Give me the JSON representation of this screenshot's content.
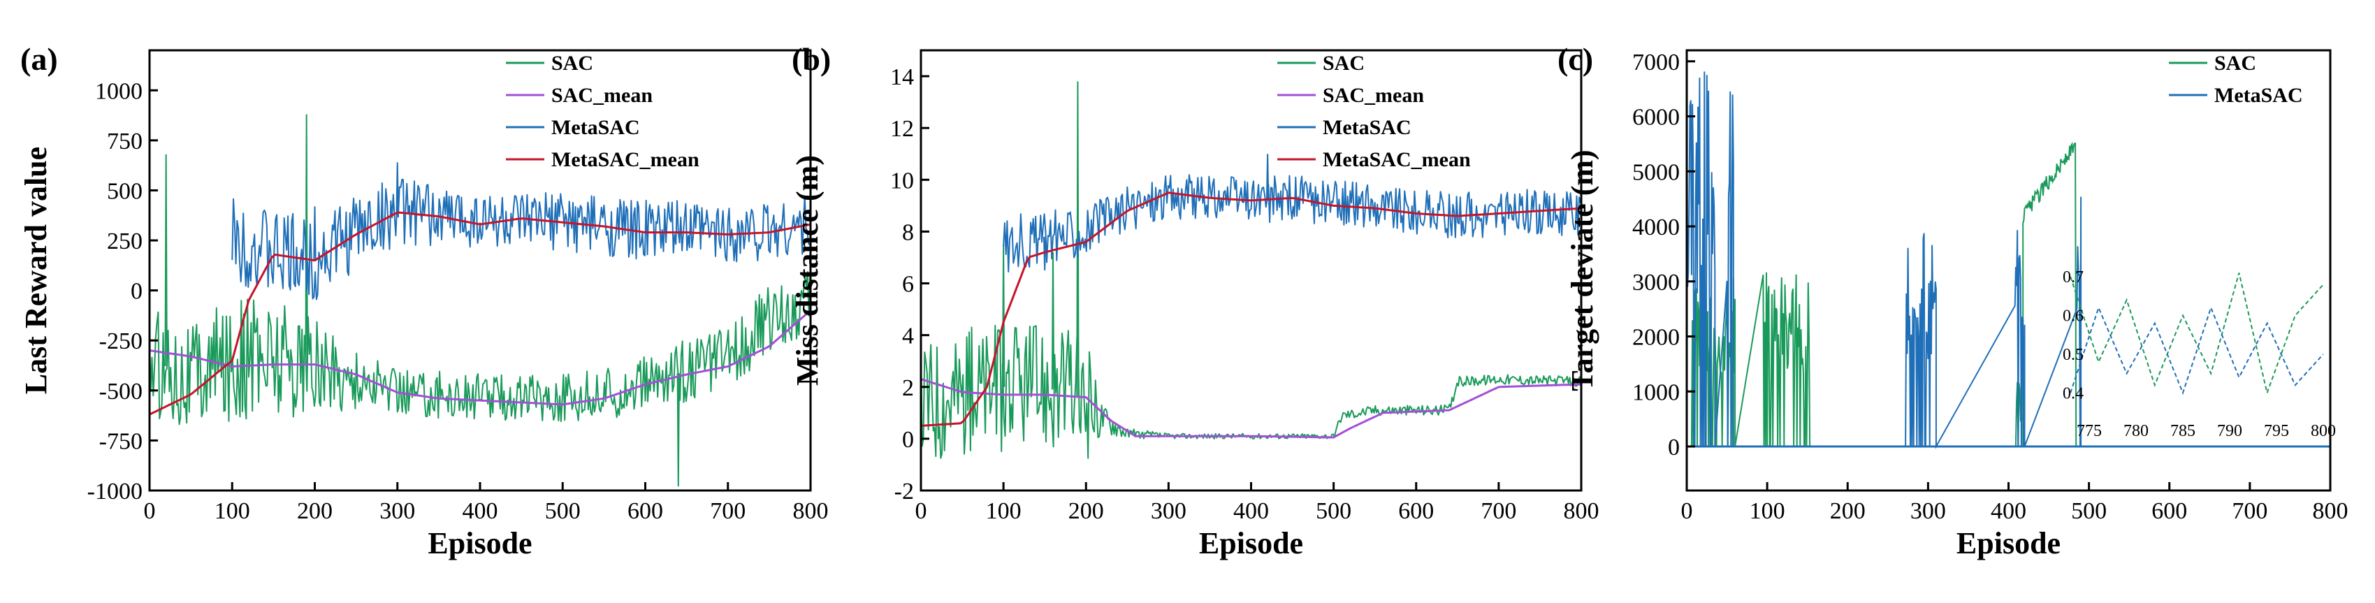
{
  "chart_data": [
    {
      "type": "line",
      "panel_label": "(a)",
      "xlabel": "Episode",
      "ylabel": "Last Reward value",
      "xlim": [
        0,
        800
      ],
      "ylim": [
        -1000,
        1200
      ],
      "xticks": [
        0,
        100,
        200,
        300,
        400,
        500,
        600,
        700,
        800
      ],
      "yticks": [
        -1000,
        -750,
        -500,
        -250,
        0,
        250,
        500,
        750,
        1000
      ],
      "legend_position": "top-right",
      "series": [
        {
          "name": "SAC",
          "color": "#1a9a5a",
          "style": "noisy",
          "x": [
            0,
            50,
            100,
            150,
            200,
            250,
            300,
            350,
            400,
            450,
            500,
            550,
            600,
            650,
            700,
            750,
            800
          ],
          "y": [
            -350,
            -420,
            -350,
            -320,
            -380,
            -450,
            -500,
            -520,
            -530,
            -530,
            -540,
            -520,
            -470,
            -400,
            -330,
            -150,
            -50
          ],
          "spread": [
            280,
            280,
            300,
            320,
            260,
            140,
            120,
            120,
            120,
            120,
            120,
            130,
            140,
            160,
            150,
            180,
            160
          ],
          "spikes": [
            [
              20,
              680
            ],
            [
              190,
              880
            ],
            [
              640,
              -980
            ]
          ]
        },
        {
          "name": "SAC_mean",
          "color": "#a24fd6",
          "style": "smooth",
          "x": [
            0,
            50,
            100,
            150,
            200,
            250,
            300,
            350,
            400,
            450,
            500,
            550,
            600,
            650,
            700,
            750,
            800
          ],
          "y": [
            -300,
            -330,
            -380,
            -370,
            -370,
            -420,
            -510,
            -540,
            -550,
            -560,
            -570,
            -540,
            -470,
            -420,
            -380,
            -280,
            -100
          ]
        },
        {
          "name": "MetaSAC",
          "color": "#1f6fb8",
          "style": "noisy",
          "x_start": 100,
          "x": [
            100,
            150,
            200,
            250,
            300,
            350,
            400,
            450,
            500,
            550,
            600,
            650,
            700,
            750,
            800
          ],
          "y": [
            270,
            180,
            150,
            300,
            400,
            370,
            360,
            330,
            350,
            320,
            300,
            300,
            290,
            300,
            330
          ],
          "spread": [
            220,
            220,
            220,
            200,
            170,
            150,
            150,
            150,
            150,
            150,
            150,
            150,
            150,
            150,
            150
          ],
          "spikes": [
            [
              200,
              420
            ],
            [
              300,
              640
            ]
          ]
        },
        {
          "name": "MetaSAC_mean",
          "color": "#c4142b",
          "style": "smooth",
          "x": [
            0,
            50,
            100,
            120,
            150,
            200,
            250,
            300,
            350,
            400,
            450,
            500,
            550,
            600,
            650,
            700,
            750,
            800
          ],
          "y": [
            -620,
            -520,
            -350,
            -50,
            180,
            150,
            280,
            390,
            370,
            330,
            360,
            340,
            320,
            290,
            290,
            280,
            290,
            330
          ]
        }
      ]
    },
    {
      "type": "line",
      "panel_label": "(b)",
      "xlabel": "Episode",
      "ylabel": "Miss distance (m)",
      "xlim": [
        0,
        800
      ],
      "ylim": [
        -2,
        15
      ],
      "xticks": [
        0,
        100,
        200,
        300,
        400,
        500,
        600,
        700,
        800
      ],
      "yticks": [
        -2,
        0,
        2,
        4,
        6,
        8,
        10,
        12,
        14
      ],
      "legend_position": "top-right",
      "series": [
        {
          "name": "SAC",
          "color": "#1a9a5a",
          "style": "noisy",
          "x": [
            0,
            50,
            100,
            150,
            200,
            220,
            250,
            300,
            400,
            500,
            510,
            550,
            640,
            650,
            700,
            800
          ],
          "y": [
            1.5,
            1.8,
            2.0,
            2.0,
            1.5,
            0.8,
            0.2,
            0.1,
            0.1,
            0.1,
            0.9,
            1.1,
            1.1,
            2.2,
            2.3,
            2.2
          ],
          "spread": [
            2.5,
            2.5,
            2.5,
            2.5,
            2.5,
            0.6,
            0.2,
            0.1,
            0.1,
            0.1,
            0.2,
            0.2,
            0.2,
            0.2,
            0.2,
            0.2
          ],
          "spikes": [
            [
              190,
              13.8
            ],
            [
              100,
              7.5
            ],
            [
              160,
              7.2
            ]
          ]
        },
        {
          "name": "SAC_mean",
          "color": "#a24fd6",
          "style": "smooth",
          "x": [
            0,
            50,
            100,
            150,
            200,
            230,
            260,
            300,
            400,
            500,
            520,
            560,
            640,
            660,
            700,
            800
          ],
          "y": [
            2.3,
            1.8,
            1.7,
            1.7,
            1.6,
            0.7,
            0.1,
            0.1,
            0.1,
            0.05,
            0.4,
            1.0,
            1.1,
            1.4,
            2.0,
            2.1
          ]
        },
        {
          "name": "MetaSAC",
          "color": "#1f6fb8",
          "style": "noisy",
          "x_start": 100,
          "x": [
            100,
            150,
            200,
            250,
            300,
            350,
            400,
            450,
            500,
            550,
            600,
            650,
            700,
            750,
            800
          ],
          "y": [
            7.5,
            7.8,
            8.0,
            8.9,
            9.4,
            9.3,
            9.2,
            9.3,
            9.1,
            9.0,
            8.8,
            8.6,
            8.7,
            8.8,
            8.7
          ],
          "spread": [
            1.2,
            1.0,
            1.0,
            0.9,
            0.9,
            0.9,
            0.9,
            0.9,
            0.9,
            0.9,
            0.9,
            0.9,
            0.9,
            0.9,
            0.9
          ],
          "spikes": [
            [
              150,
              6.5
            ],
            [
              420,
              11.0
            ]
          ]
        },
        {
          "name": "MetaSAC_mean",
          "color": "#c4142b",
          "style": "smooth",
          "x": [
            0,
            50,
            80,
            100,
            130,
            150,
            200,
            250,
            300,
            350,
            400,
            450,
            500,
            550,
            600,
            650,
            700,
            750,
            800
          ],
          "y": [
            0.5,
            0.6,
            2.0,
            4.5,
            7.0,
            7.2,
            7.6,
            8.8,
            9.5,
            9.3,
            9.2,
            9.3,
            9.0,
            8.9,
            8.7,
            8.6,
            8.7,
            8.8,
            8.9
          ]
        }
      ]
    },
    {
      "type": "line",
      "panel_label": "(c)",
      "xlabel": "Episode",
      "ylabel": "Target deviate (m)",
      "xlim": [
        0,
        800
      ],
      "ylim": [
        -800,
        7200
      ],
      "xticks": [
        0,
        100,
        200,
        300,
        400,
        500,
        600,
        700,
        800
      ],
      "yticks": [
        0,
        1000,
        2000,
        3000,
        4000,
        5000,
        6000,
        7000
      ],
      "legend_position": "top-right",
      "series": [
        {
          "name": "SAC",
          "color": "#1a9a5a",
          "style": "bursts",
          "bursts": [
            {
              "x0": 5,
              "x1": 60,
              "max": 3200
            },
            {
              "x0": 95,
              "x1": 155,
              "max": 3200
            },
            {
              "x0": 408,
              "x1": 418,
              "max": 1200
            },
            {
              "x0": 418,
              "x1": 485,
              "max": 5600,
              "block": true
            }
          ]
        },
        {
          "name": "MetaSAC",
          "color": "#1f6fb8",
          "style": "bursts",
          "bursts": [
            {
              "x0": 0,
              "x1": 35,
              "max": 6900
            },
            {
              "x0": 50,
              "x1": 58,
              "max": 6900
            },
            {
              "x0": 270,
              "x1": 310,
              "max": 3900
            },
            {
              "x0": 408,
              "x1": 420,
              "max": 4300
            },
            {
              "x0": 485,
              "x1": 490,
              "max": 5500
            }
          ]
        }
      ],
      "inset": {
        "xlim": [
          775,
          800
        ],
        "ylim": [
          0.35,
          0.72
        ],
        "xticks": [
          775,
          780,
          785,
          790,
          795,
          800
        ],
        "yticks": [
          0.4,
          0.5,
          0.6,
          0.7
        ],
        "series": [
          {
            "color": "#1a9a5a",
            "x": [
              773,
              776,
              779,
              782,
              785,
              788,
              791,
              794,
              797,
              800
            ],
            "y": [
              0.7,
              0.48,
              0.64,
              0.42,
              0.6,
              0.45,
              0.71,
              0.4,
              0.6,
              0.68
            ]
          },
          {
            "color": "#1f6fb8",
            "x": [
              773,
              776,
              779,
              782,
              785,
              788,
              791,
              794,
              797,
              800
            ],
            "y": [
              0.4,
              0.62,
              0.45,
              0.58,
              0.4,
              0.62,
              0.44,
              0.58,
              0.42,
              0.5
            ]
          }
        ]
      }
    }
  ]
}
